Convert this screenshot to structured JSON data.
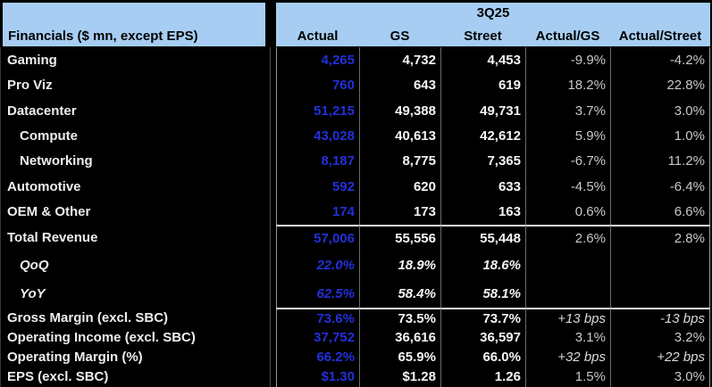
{
  "header": {
    "label": "Financials ($ mn, except EPS)",
    "period": "3Q25",
    "columns": [
      "Actual",
      "GS",
      "Street",
      "Actual/GS",
      "Actual/Street"
    ]
  },
  "colors": {
    "header_bg": "#A7CEF2",
    "body_bg": "#000000",
    "actual_blue": "#2330DA",
    "estimate_white": "#F5F5F5",
    "ratio_gray": "#C9C9C9",
    "label_white": "#EDEDED"
  },
  "rows": [
    {
      "label": "Gaming",
      "indent": false,
      "values": [
        "4,265",
        "4,732",
        "4,453",
        "-9.9%",
        "-4.2%"
      ]
    },
    {
      "label": "Pro Viz",
      "indent": false,
      "values": [
        "760",
        "643",
        "619",
        "18.2%",
        "22.8%"
      ]
    },
    {
      "label": "Datacenter",
      "indent": false,
      "values": [
        "51,215",
        "49,388",
        "49,731",
        "3.7%",
        "3.0%"
      ]
    },
    {
      "label": "Compute",
      "indent": true,
      "values": [
        "43,028",
        "40,613",
        "42,612",
        "5.9%",
        "1.0%"
      ]
    },
    {
      "label": "Networking",
      "indent": true,
      "values": [
        "8,187",
        "8,775",
        "7,365",
        "-6.7%",
        "11.2%"
      ]
    },
    {
      "label": "Automotive",
      "indent": false,
      "values": [
        "592",
        "620",
        "633",
        "-4.5%",
        "-6.4%"
      ]
    },
    {
      "label": "OEM & Other",
      "indent": false,
      "values": [
        "174",
        "173",
        "163",
        "0.6%",
        "6.6%"
      ]
    },
    {
      "label": "Total Revenue",
      "indent": false,
      "separator_above": true,
      "values": [
        "57,006",
        "55,556",
        "55,448",
        "2.6%",
        "2.8%"
      ]
    },
    {
      "label": "QoQ",
      "indent": true,
      "italic": true,
      "values": [
        "22.0%",
        "18.9%",
        "18.6%",
        "",
        ""
      ]
    },
    {
      "label": "YoY",
      "indent": true,
      "italic": true,
      "values": [
        "62.5%",
        "58.4%",
        "58.1%",
        "",
        ""
      ]
    },
    {
      "label": "Gross Margin (excl. SBC)",
      "indent": false,
      "separator_above": true,
      "values": [
        "73.6%",
        "73.5%",
        "73.7%",
        "+13 bps",
        "-13 bps"
      ]
    },
    {
      "label": "Operating Income (excl. SBC)",
      "indent": false,
      "values": [
        "37,752",
        "36,616",
        "36,597",
        "3.1%",
        "3.2%"
      ]
    },
    {
      "label": "Operating Margin (%)",
      "indent": false,
      "values": [
        "66.2%",
        "65.9%",
        "66.0%",
        "+32 bps",
        "+22 bps"
      ]
    },
    {
      "label": "EPS (excl. SBC)",
      "indent": false,
      "values": [
        "$1.30",
        "$1.28",
        "1.26",
        "1.5%",
        "3.0%"
      ]
    }
  ]
}
